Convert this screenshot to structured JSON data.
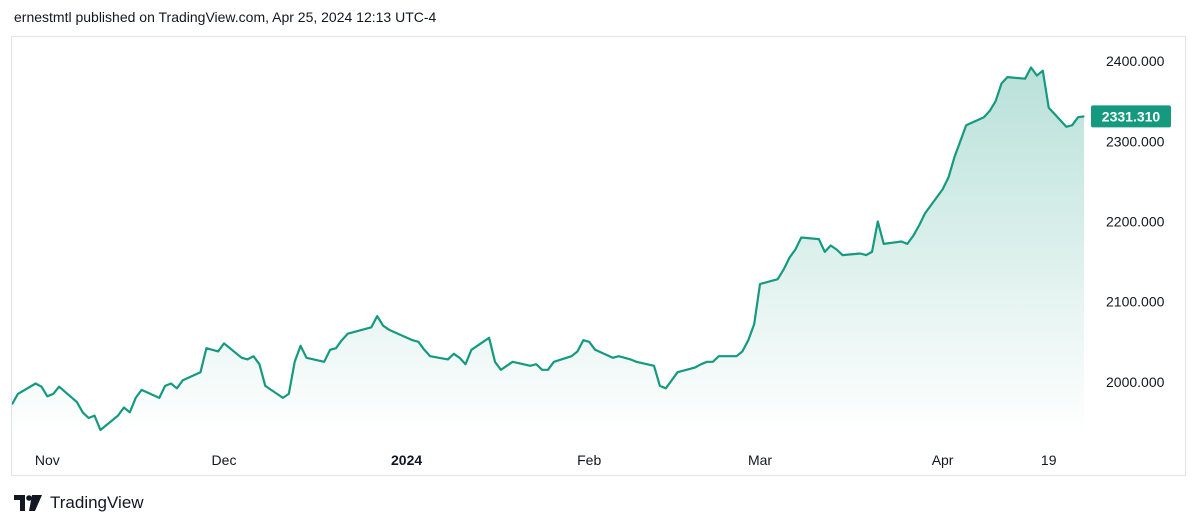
{
  "header": {
    "text": "ernestmtl published on TradingView.com, Apr 25, 2024 12:13 UTC-4"
  },
  "branding": {
    "logo_text": "TradingView",
    "logo_icon": "tradingview-logo-icon"
  },
  "colors": {
    "line": "#159a80",
    "area_top": "#159a80",
    "last_price_bg": "#159a80",
    "axis_text": "#131722",
    "border": "#e0e3eb"
  },
  "chart_data": {
    "type": "area",
    "x_label_type": "date",
    "x_ticks": [
      "Nov",
      "Dec",
      "2024",
      "Feb",
      "Mar",
      "Apr",
      "19"
    ],
    "y_ticks": [
      "2000.000",
      "2100.000",
      "2200.000",
      "2300.000",
      "2400.000"
    ],
    "ylim": [
      1935,
      2430
    ],
    "xlim": [
      "2023-10-26",
      "2024-04-25"
    ],
    "last_price": "2331.310",
    "grid": false,
    "series": [
      {
        "x": [
          "2023-10-26",
          "2023-10-27",
          "2023-10-30",
          "2023-10-31",
          "2023-11-01",
          "2023-11-02",
          "2023-11-03",
          "2023-11-06",
          "2023-11-07",
          "2023-11-08",
          "2023-11-09",
          "2023-11-10",
          "2023-11-13",
          "2023-11-14",
          "2023-11-15",
          "2023-11-16",
          "2023-11-17",
          "2023-11-20",
          "2023-11-21",
          "2023-11-22",
          "2023-11-23",
          "2023-11-24",
          "2023-11-27",
          "2023-11-28",
          "2023-11-29",
          "2023-11-30",
          "2023-12-01",
          "2023-12-04",
          "2023-12-05",
          "2023-12-06",
          "2023-12-07",
          "2023-12-08",
          "2023-12-11",
          "2023-12-12",
          "2023-12-13",
          "2023-12-14",
          "2023-12-15",
          "2023-12-18",
          "2023-12-19",
          "2023-12-20",
          "2023-12-21",
          "2023-12-22",
          "2023-12-26",
          "2023-12-27",
          "2023-12-28",
          "2023-12-29",
          "2024-01-02",
          "2024-01-03",
          "2024-01-04",
          "2024-01-05",
          "2024-01-08",
          "2024-01-09",
          "2024-01-10",
          "2024-01-11",
          "2024-01-12",
          "2024-01-15",
          "2024-01-16",
          "2024-01-17",
          "2024-01-18",
          "2024-01-19",
          "2024-01-22",
          "2024-01-23",
          "2024-01-24",
          "2024-01-25",
          "2024-01-26",
          "2024-01-29",
          "2024-01-30",
          "2024-01-31",
          "2024-02-01",
          "2024-02-02",
          "2024-02-05",
          "2024-02-06",
          "2024-02-07",
          "2024-02-08",
          "2024-02-09",
          "2024-02-12",
          "2024-02-13",
          "2024-02-14",
          "2024-02-15",
          "2024-02-16",
          "2024-02-19",
          "2024-02-20",
          "2024-02-21",
          "2024-02-22",
          "2024-02-23",
          "2024-02-26",
          "2024-02-27",
          "2024-02-28",
          "2024-02-29",
          "2024-03-01",
          "2024-03-04",
          "2024-03-05",
          "2024-03-06",
          "2024-03-07",
          "2024-03-08",
          "2024-03-11",
          "2024-03-12",
          "2024-03-13",
          "2024-03-14",
          "2024-03-15",
          "2024-03-18",
          "2024-03-19",
          "2024-03-20",
          "2024-03-21",
          "2024-03-22",
          "2024-03-25",
          "2024-03-26",
          "2024-03-27",
          "2024-03-28",
          "2024-03-29",
          "2024-04-01",
          "2024-04-02",
          "2024-04-03",
          "2024-04-04",
          "2024-04-05",
          "2024-04-08",
          "2024-04-09",
          "2024-04-10",
          "2024-04-11",
          "2024-04-12",
          "2024-04-15",
          "2024-04-16",
          "2024-04-17",
          "2024-04-18",
          "2024-04-19",
          "2024-04-22",
          "2024-04-23",
          "2024-04-24",
          "2024-04-25"
        ],
        "values": [
          1972,
          1985,
          1998,
          1994,
          1982,
          1985,
          1994,
          1975,
          1962,
          1955,
          1958,
          1940,
          1958,
          1968,
          1962,
          1980,
          1990,
          1980,
          1995,
          1998,
          1992,
          2002,
          2012,
          2042,
          2040,
          2038,
          2048,
          2030,
          2028,
          2032,
          2022,
          1995,
          1980,
          1985,
          2025,
          2045,
          2030,
          2025,
          2040,
          2042,
          2052,
          2060,
          2068,
          2082,
          2070,
          2065,
          2052,
          2050,
          2040,
          2032,
          2028,
          2035,
          2030,
          2022,
          2040,
          2055,
          2025,
          2015,
          2020,
          2025,
          2020,
          2022,
          2015,
          2015,
          2025,
          2032,
          2038,
          2052,
          2050,
          2040,
          2030,
          2032,
          2030,
          2028,
          2025,
          2020,
          1995,
          1992,
          2002,
          2012,
          2018,
          2022,
          2025,
          2025,
          2032,
          2032,
          2038,
          2052,
          2072,
          2122,
          2128,
          2140,
          2155,
          2165,
          2180,
          2178,
          2162,
          2170,
          2165,
          2158,
          2160,
          2158,
          2162,
          2200,
          2172,
          2175,
          2172,
          2182,
          2195,
          2210,
          2240,
          2255,
          2280,
          2300,
          2320,
          2330,
          2338,
          2350,
          2372,
          2380,
          2378,
          2392,
          2382,
          2388,
          2342,
          2318,
          2320,
          2330,
          2331
        ]
      }
    ]
  }
}
